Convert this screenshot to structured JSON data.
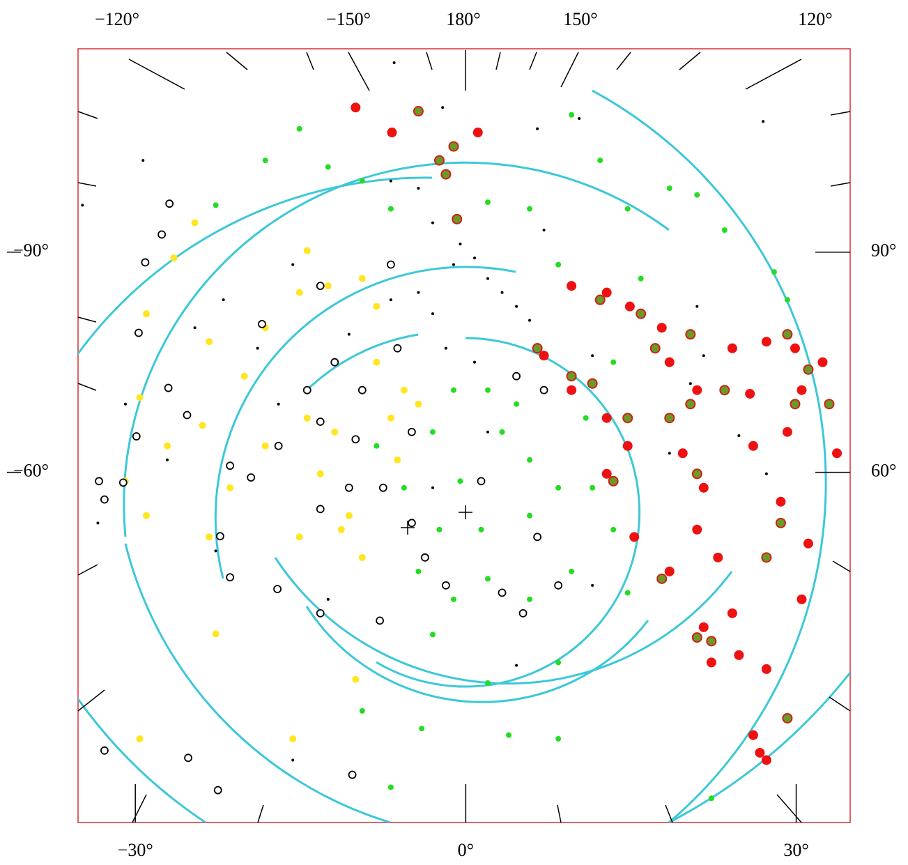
{
  "chart_data": {
    "type": "scatter",
    "top_labels": [
      "−120°",
      "−150°",
      "180°",
      "150°",
      "120°"
    ],
    "xlim": [
      -35.2,
      34.9
    ],
    "xticks": [
      {
        "value": -30,
        "label": "−30°"
      },
      {
        "value": 0,
        "label": "0°"
      },
      {
        "value": 30,
        "label": "30°"
      }
    ],
    "ylim": [
      -12.3,
      -117.7
    ],
    "yticks": [
      {
        "value": -90,
        "label": "−90°"
      },
      {
        "value": -60,
        "label": "−60°"
      }
    ],
    "y2lim": [
      12.3,
      117.7
    ],
    "y2ticks": [
      {
        "value": 90,
        "label": "90°"
      },
      {
        "value": 60,
        "label": "60°"
      }
    ],
    "series": [
      {
        "color": "#ffe620",
        "marker": "filled",
        "x": [
          -24.6,
          -26.5,
          -29.0,
          -29.6,
          -30.9,
          -29.0,
          -23.3,
          -22.7,
          -29.6,
          -15.7,
          -10.0,
          -23.3,
          -20.1,
          -18.2,
          -14.4,
          -15.1,
          -12.5,
          -9.4,
          -8.1,
          -5.6,
          -6.8,
          -4.3,
          -8.1,
          -11.9,
          -13.2,
          -10.6,
          -9.4,
          -11.3,
          -15.1,
          -18.2,
          -21.4,
          -14.4,
          -6.2,
          -23.9,
          -27.1
        ],
        "values": [
          -94.0,
          -89.2,
          -81.6,
          -70.2,
          -58.8,
          -54.1,
          -51.2,
          -38.0,
          -23.7,
          -23.7,
          -31.8,
          -77.8,
          -73.1,
          -79.7,
          -90.2,
          -84.5,
          -85.4,
          -86.4,
          -82.6,
          -71.2,
          -67.4,
          -69.3,
          -75.0,
          -65.5,
          -59.8,
          -54.1,
          -48.4,
          -52.2,
          -51.2,
          -63.6,
          -57.9,
          -67.4,
          -61.7,
          -66.4,
          -63.6
        ]
      },
      {
        "color": "#22dd22",
        "marker": "small",
        "x": [
          -15.1,
          -12.5,
          -9.4,
          -6.8,
          -18.2,
          -22.7,
          2.0,
          5.8,
          9.6,
          12.2,
          14.7,
          18.5,
          21.0,
          23.5,
          28.0,
          29.2,
          2.0,
          -1.1,
          -3.0,
          3.3,
          5.8,
          8.4,
          11.5,
          5.8,
          1.4,
          -2.4,
          -4.3,
          -1.1,
          2.0,
          5.8,
          9.6,
          14.7,
          -3.0,
          2.0,
          8.4,
          3.9,
          8.4,
          -9.4,
          -4.0,
          22.3,
          13.4,
          -8.1,
          -5.6,
          -0.5,
          4.6,
          10.9,
          13.4,
          15.9,
          8.4,
          -6.8
        ],
        "values": [
          -106.8,
          -101.6,
          -99.7,
          -95.9,
          -102.5,
          -96.4,
          -96.8,
          -95.9,
          -108.7,
          -102.5,
          -95.9,
          -98.7,
          -97.8,
          -93.0,
          -87.3,
          -83.5,
          -71.2,
          -71.2,
          -65.5,
          -65.5,
          -61.7,
          -57.9,
          -57.9,
          -54.1,
          -52.2,
          -52.2,
          -46.5,
          -42.7,
          -45.5,
          -42.7,
          -46.5,
          -43.6,
          -37.9,
          -31.3,
          -34.1,
          -24.2,
          -23.7,
          -27.5,
          -25.1,
          -15.6,
          -52.2,
          -63.6,
          -57.9,
          -58.8,
          -69.3,
          -67.4,
          -75.0,
          -86.4,
          -88.3,
          -17.1
        ]
      },
      {
        "color": "#ee1111",
        "marker": "large",
        "x": [
          -10.0,
          -6.7,
          1.1,
          9.6,
          12.8,
          14.9,
          17.8,
          18.5,
          21.0,
          24.2,
          27.3,
          29.9,
          32.4,
          30.5,
          33.7,
          26.1,
          29.2,
          14.7,
          12.8,
          19.7,
          21.6,
          21.0,
          18.5,
          22.9,
          24.2,
          21.6,
          24.8,
          22.3,
          27.3,
          30.5,
          31.1,
          28.6,
          26.7,
          27.3,
          26.1,
          15.3,
          12.8,
          9.6,
          7.1,
          25.8
        ],
        "values": [
          -109.7,
          -106.3,
          -106.3,
          -85.4,
          -84.5,
          -82.6,
          -79.7,
          -75.0,
          -71.2,
          -76.9,
          -77.8,
          -76.9,
          -75.0,
          -71.2,
          -62.6,
          -63.6,
          -65.5,
          -63.6,
          -67.4,
          -62.6,
          -57.9,
          -52.2,
          -46.5,
          -48.4,
          -40.8,
          -38.9,
          -35.1,
          -34.1,
          -33.2,
          -42.7,
          -50.3,
          -56.0,
          -21.8,
          -20.8,
          -24.2,
          -51.2,
          -59.8,
          -71.2,
          -75.9,
          -70.7
        ]
      },
      {
        "color": "#6a9a2a",
        "marker": "ringed",
        "x": [
          -4.3,
          -2.4,
          -1.1,
          -0.8,
          -1.8,
          12.2,
          15.9,
          17.2,
          20.4,
          29.2,
          31.1,
          29.9,
          11.5,
          14.7,
          13.4,
          20.4,
          21.0,
          27.3,
          28.6,
          21.0,
          22.3,
          29.2,
          17.8,
          6.5,
          9.6,
          33.0,
          23.5,
          18.5
        ],
        "values": [
          -109.2,
          -102.5,
          -104.4,
          -94.5,
          -100.6,
          -83.5,
          -81.6,
          -76.9,
          -78.8,
          -78.8,
          -74.0,
          -69.3,
          -72.1,
          -67.4,
          -58.8,
          -69.3,
          -59.8,
          -48.4,
          -53.1,
          -37.5,
          -37.0,
          -26.5,
          -45.5,
          -76.9,
          -73.1,
          -69.3,
          -71.2,
          -67.4
        ]
      },
      {
        "color": "#000000",
        "marker": "open",
        "x": [
          -26.9,
          -27.6,
          -29.1,
          -29.7,
          -27.0,
          -25.3,
          -29.9,
          -33.3,
          -32.8,
          -31.1,
          -21.4,
          -19.5,
          -22.3,
          -21.4,
          -17.1,
          -13.2,
          -10.3,
          -22.5,
          -25.2,
          -32.8,
          -18.5,
          -13.2,
          -6.8,
          -6.2,
          -9.4,
          -11.9,
          -14.4,
          -17.0,
          -10.6,
          -13.2,
          -7.5,
          -4.9,
          -3.7,
          -1.8,
          3.3,
          5.2,
          6.5,
          8.4,
          1.4,
          4.6,
          7.1,
          -4.9,
          -7.8,
          -13.2,
          -10.0
        ],
        "values": [
          -96.6,
          -92.4,
          -88.6,
          -79.0,
          -71.5,
          -67.8,
          -64.9,
          -58.8,
          -56.3,
          -58.6,
          -60.9,
          -59.3,
          -51.3,
          -45.7,
          -44.1,
          -40.8,
          -18.8,
          -16.7,
          -21.1,
          -22.1,
          -80.2,
          -85.4,
          -88.3,
          -76.9,
          -71.2,
          -75.0,
          -71.2,
          -63.6,
          -57.9,
          -55.0,
          -57.9,
          -53.1,
          -48.4,
          -44.6,
          -43.6,
          -40.8,
          -51.2,
          -44.6,
          -58.8,
          -73.1,
          -71.2,
          -65.5,
          -39.8,
          -66.9,
          -64.5
        ]
      },
      {
        "color": "#000000",
        "marker": "dot",
        "x": [
          -6.5,
          -2.1,
          -29.3,
          -34.8,
          6.5,
          10.3,
          27.0,
          -0.5,
          0.8,
          -1.1,
          2.0,
          3.3,
          4.6,
          5.8,
          0.8,
          -1.8,
          -3.0,
          -4.3,
          -6.8,
          -10.6,
          -15.7,
          -22.0,
          -24.6,
          -18.9,
          -17.0,
          -30.9,
          -27.1,
          -33.4,
          -22.7,
          -12.5,
          4.6,
          24.8,
          27.3,
          21.6,
          20.4,
          -6.8,
          -4.3,
          -3.0,
          7.1,
          11.5,
          21.0,
          -3.0,
          2.0,
          -15.7,
          11.5,
          18.5
        ],
        "values": [
          -115.8,
          -109.7,
          -102.5,
          -96.4,
          -106.8,
          -108.2,
          -107.8,
          -91.1,
          -89.2,
          -88.3,
          -86.4,
          -84.5,
          -82.6,
          -80.7,
          -75.0,
          -76.9,
          -81.6,
          -84.5,
          -83.5,
          -78.8,
          -88.3,
          -83.5,
          -79.7,
          -76.9,
          -69.3,
          -69.3,
          -61.7,
          -53.1,
          -49.3,
          -42.7,
          -33.7,
          -65.0,
          -59.8,
          -75.9,
          -72.1,
          -99.7,
          -98.7,
          -94.0,
          -93.0,
          -75.9,
          -82.6,
          -57.9,
          -65.5,
          -20.8,
          -44.6,
          -62.6
        ]
      }
    ]
  }
}
